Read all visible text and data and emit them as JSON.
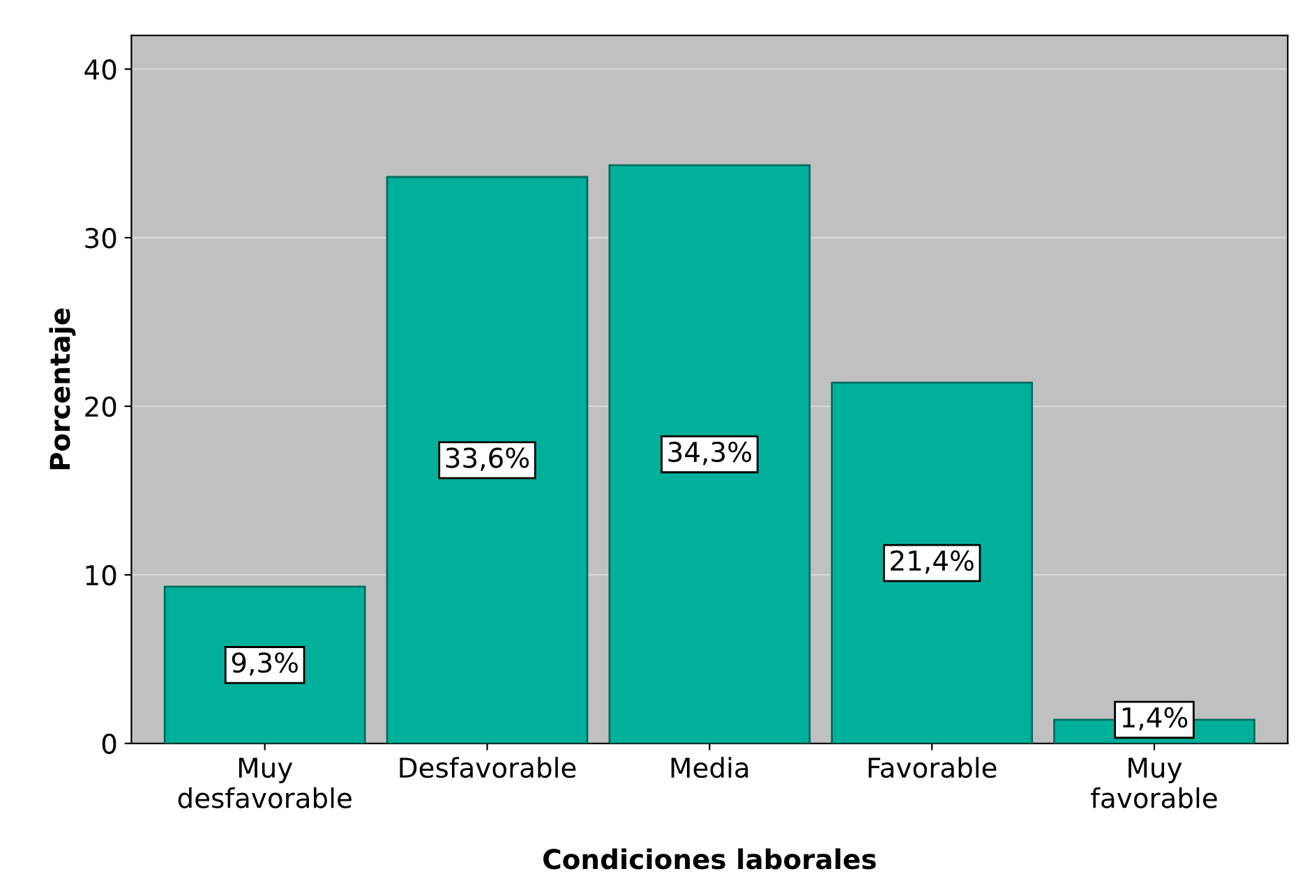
{
  "chart_data": {
    "type": "bar",
    "categories": [
      "Muy\ndesfavorable",
      "Desfavorable",
      "Media",
      "Favorable",
      "Muy\nfavorable"
    ],
    "values": [
      9.3,
      33.6,
      34.3,
      21.4,
      1.4
    ],
    "value_labels": [
      "9,3%",
      "33,6%",
      "34,3%",
      "21,4%",
      "1,4%"
    ],
    "color": "#00b09b",
    "xlabel": "Condiciones laborales",
    "ylabel": "Porcentaje",
    "ylim": [
      0,
      42
    ],
    "yticks": [
      0,
      10,
      20,
      30,
      40
    ],
    "grid": "y",
    "legend": false
  }
}
